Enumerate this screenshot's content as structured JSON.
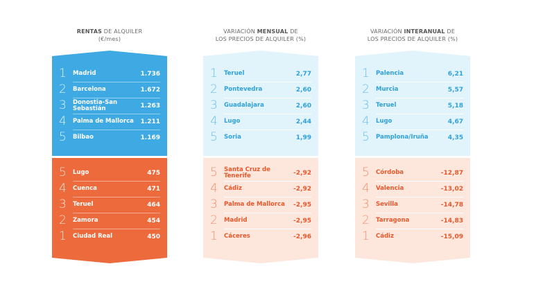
{
  "columns": [
    {
      "title_bold": "RENTAS",
      "title_after": " DE ALQUILER",
      "title_line2": "(€/mes)",
      "top": [
        {
          "rank": "1",
          "name": "Madrid",
          "value": "1.736"
        },
        {
          "rank": "2",
          "name": "Barcelona",
          "value": "1.672"
        },
        {
          "rank": "3",
          "name": "Donostia-San Sebastián",
          "value": "1.263"
        },
        {
          "rank": "4",
          "name": "Palma de Mallorca",
          "value": "1.211"
        },
        {
          "rank": "5",
          "name": "Bilbao",
          "value": "1.169"
        }
      ],
      "bottom": [
        {
          "rank": "5",
          "name": "Lugo",
          "value": "475"
        },
        {
          "rank": "4",
          "name": "Cuenca",
          "value": "471"
        },
        {
          "rank": "3",
          "name": "Teruel",
          "value": "464"
        },
        {
          "rank": "2",
          "name": "Zamora",
          "value": "454"
        },
        {
          "rank": "1",
          "name": "Ciudad Real",
          "value": "450"
        }
      ]
    },
    {
      "title_before": "VARIACIÓN ",
      "title_bold": "MENSUAL",
      "title_after": " DE",
      "title_line2": "LOS PRECIOS DE ALQUILER (%)",
      "top": [
        {
          "rank": "1",
          "name": "Teruel",
          "value": "2,77"
        },
        {
          "rank": "2",
          "name": "Pontevedra",
          "value": "2,60"
        },
        {
          "rank": "3",
          "name": "Guadalajara",
          "value": "2,60"
        },
        {
          "rank": "4",
          "name": "Lugo",
          "value": "2,44"
        },
        {
          "rank": "5",
          "name": "Soria",
          "value": "1,99"
        }
      ],
      "bottom": [
        {
          "rank": "5",
          "name": "Santa Cruz de Tenerife",
          "value": "-2,92"
        },
        {
          "rank": "4",
          "name": "Cádiz",
          "value": "-2,92"
        },
        {
          "rank": "3",
          "name": "Palma de Mallorca",
          "value": "-2,95"
        },
        {
          "rank": "2",
          "name": "Madrid",
          "value": "-2,95"
        },
        {
          "rank": "1",
          "name": "Cáceres",
          "value": "-2,96"
        }
      ]
    },
    {
      "title_before": "VARIACIÓN ",
      "title_bold": "INTERANUAL",
      "title_after": " DE",
      "title_line2": "LOS PRECIOS DE ALQUILER (%)",
      "top": [
        {
          "rank": "1",
          "name": "Palencia",
          "value": "6,21"
        },
        {
          "rank": "2",
          "name": "Murcia",
          "value": "5,57"
        },
        {
          "rank": "3",
          "name": "Teruel",
          "value": "5,18"
        },
        {
          "rank": "4",
          "name": "Lugo",
          "value": "4,67"
        },
        {
          "rank": "5",
          "name": "Pamplona/Iruña",
          "value": "4,35"
        }
      ],
      "bottom": [
        {
          "rank": "5",
          "name": "Córdoba",
          "value": "-12,87"
        },
        {
          "rank": "4",
          "name": "Valencia",
          "value": "-13,02"
        },
        {
          "rank": "3",
          "name": "Sevilla",
          "value": "-14,78"
        },
        {
          "rank": "2",
          "name": "Tarragona",
          "value": "-14,83"
        },
        {
          "rank": "1",
          "name": "Cádiz",
          "value": "-15,09"
        }
      ]
    }
  ],
  "colors": {
    "blue": "#3fa9e4",
    "orange": "#ec6a3c",
    "light_blue": "#e1f3fb",
    "peach": "#fde6dc"
  }
}
